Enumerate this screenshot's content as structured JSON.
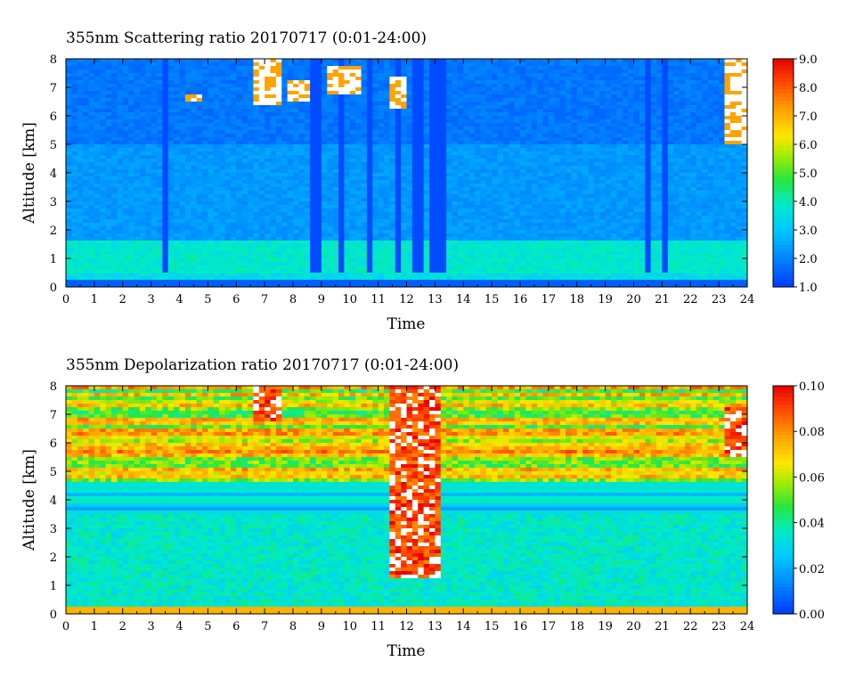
{
  "chart_data": [
    {
      "type": "heatmap",
      "title": "355nm Scattering ratio  20170717 (0:01-24:00)",
      "xlabel": "Time",
      "ylabel": "Altitude [km]",
      "x_ticks": [
        "0",
        "1",
        "2",
        "3",
        "4",
        "5",
        "6",
        "7",
        "8",
        "9",
        "10",
        "11",
        "12",
        "13",
        "14",
        "15",
        "16",
        "17",
        "18",
        "19",
        "20",
        "21",
        "22",
        "23",
        "24"
      ],
      "y_ticks": [
        "0",
        "1",
        "2",
        "3",
        "4",
        "5",
        "6",
        "7",
        "8"
      ],
      "xlim": [
        0,
        24
      ],
      "ylim": [
        0,
        8
      ],
      "colorbar": {
        "range": [
          1.0,
          9.0
        ],
        "labels": [
          "1.0",
          "2.0",
          "3.0",
          "4.0",
          "5.0",
          "6.0",
          "7.0",
          "8.0",
          "9.0"
        ]
      },
      "background_level": 2.0,
      "boundary_layer": {
        "top_km": 1.6,
        "level": 3.8
      },
      "cloud_features": [
        {
          "t": [
            4.3,
            4.8
          ],
          "alt": [
            6.5,
            6.7
          ]
        },
        {
          "t": [
            6.7,
            7.6
          ],
          "alt": [
            6.4,
            8.0
          ]
        },
        {
          "t": [
            7.8,
            8.6
          ],
          "alt": [
            6.5,
            7.2
          ]
        },
        {
          "t": [
            9.3,
            10.3
          ],
          "alt": [
            6.7,
            7.8
          ]
        },
        {
          "t": [
            11.5,
            12.0
          ],
          "alt": [
            6.2,
            7.4
          ]
        },
        {
          "t": [
            23.2,
            24.0
          ],
          "alt": [
            5.0,
            8.0
          ]
        }
      ],
      "precip_streaks": [
        3.5,
        8.8,
        9.7,
        10.7,
        11.7,
        12.4,
        12.9,
        13.2,
        20.5,
        21.1
      ]
    },
    {
      "type": "heatmap",
      "title": "355nm Depolarization ratio  20170717 (0:01-24:00)",
      "xlabel": "Time",
      "ylabel": "Altitude [km]",
      "x_ticks": [
        "0",
        "1",
        "2",
        "3",
        "4",
        "5",
        "6",
        "7",
        "8",
        "9",
        "10",
        "11",
        "12",
        "13",
        "14",
        "15",
        "16",
        "17",
        "18",
        "19",
        "20",
        "21",
        "22",
        "23",
        "24"
      ],
      "y_ticks": [
        "0",
        "1",
        "2",
        "3",
        "4",
        "5",
        "6",
        "7",
        "8"
      ],
      "xlim": [
        0,
        24
      ],
      "ylim": [
        0,
        8
      ],
      "colorbar": {
        "range": [
          0.0,
          0.1
        ],
        "labels": [
          "0.00",
          "0.02",
          "0.04",
          "0.06",
          "0.08",
          "0.10"
        ]
      },
      "background_level": 0.035,
      "upper_layer": {
        "alt": [
          4.5,
          8.0
        ],
        "level": 0.065
      },
      "cloud_features": [
        {
          "t": [
            6.7,
            7.6
          ],
          "alt": [
            6.8,
            8.0
          ]
        },
        {
          "t": [
            11.5,
            13.2
          ],
          "alt": [
            1.2,
            8.0
          ]
        },
        {
          "t": [
            23.2,
            24.0
          ],
          "alt": [
            5.5,
            7.2
          ]
        }
      ]
    }
  ]
}
